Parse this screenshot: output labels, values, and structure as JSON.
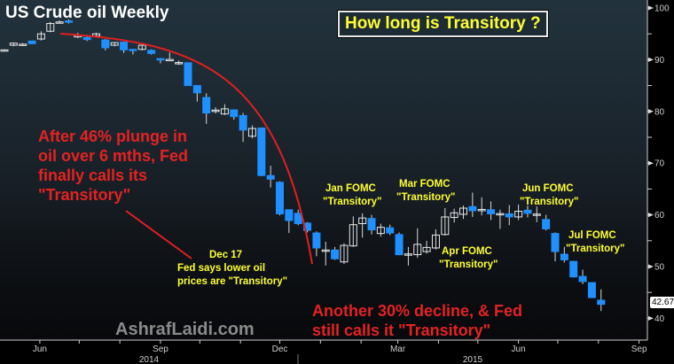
{
  "chart_data": {
    "type": "candlestick",
    "title": "US Crude oil Weekly",
    "headline": "How long is Transitory ?",
    "watermark": "AshrafLaidi.com",
    "last_price": "42.67",
    "ylim": [
      37,
      101
    ],
    "y_ticks": [
      40,
      50,
      60,
      70,
      80,
      90,
      100
    ],
    "x_tick_labels": [
      {
        "label": "Jun",
        "date": "2014-06-01"
      },
      {
        "label": "Sep",
        "date": "2014-09-01"
      },
      {
        "label": "Dec",
        "date": "2014-12-01"
      },
      {
        "label": "Mar",
        "date": "2015-03-01"
      },
      {
        "label": "Jun",
        "date": "2015-06-01"
      },
      {
        "label": "Sep",
        "date": "2015-09-01"
      }
    ],
    "year_labels": [
      "2014",
      "2015"
    ],
    "colors": {
      "down": "#1e90ff",
      "up": "#ffffff",
      "curve": "#e01f1f",
      "annotation": "#ffff33",
      "red_text": "#e52222"
    },
    "candles_fields": [
      "week",
      "open",
      "high",
      "low",
      "close"
    ],
    "candles": [
      [
        "2014-05-05",
        91.8,
        92.0,
        91.6,
        91.9
      ],
      [
        "2014-05-12",
        92.8,
        93.3,
        92.6,
        93.2
      ],
      [
        "2014-05-19",
        93.0,
        93.2,
        92.8,
        93.0
      ],
      [
        "2014-05-26",
        93.6,
        93.7,
        93.0,
        93.1
      ],
      [
        "2014-06-02",
        94.0,
        95.5,
        93.7,
        95.0
      ],
      [
        "2014-06-09",
        95.5,
        97.3,
        95.3,
        97.0
      ],
      [
        "2014-06-16",
        97.3,
        97.6,
        97.0,
        97.3
      ],
      [
        "2014-06-23",
        97.5,
        97.8,
        97.0,
        97.3
      ],
      [
        "2014-06-30",
        94.4,
        95.2,
        94.2,
        94.7
      ],
      [
        "2014-07-07",
        94.3,
        94.6,
        93.6,
        93.9
      ],
      [
        "2014-07-14",
        94.6,
        95.2,
        94.5,
        95.0
      ],
      [
        "2014-07-21",
        93.8,
        94.0,
        91.8,
        92.3
      ],
      [
        "2014-07-28",
        92.8,
        93.4,
        92.6,
        93.3
      ],
      [
        "2014-08-04",
        93.4,
        93.5,
        91.3,
        91.9
      ],
      [
        "2014-08-11",
        92.0,
        92.0,
        91.0,
        91.8
      ],
      [
        "2014-08-18",
        92.0,
        92.9,
        91.8,
        92.8
      ],
      [
        "2014-08-25",
        91.8,
        92.0,
        91.0,
        91.2
      ],
      [
        "2014-09-01",
        90.2,
        90.3,
        89.3,
        90.0
      ],
      [
        "2014-09-08",
        90.0,
        91.4,
        90.0,
        90.05
      ],
      [
        "2014-09-15",
        89.4,
        89.8,
        89.0,
        89.45
      ],
      [
        "2014-09-22",
        89.4,
        89.5,
        85.0,
        85.0
      ],
      [
        "2014-09-29",
        85.0,
        85.0,
        81.9,
        83.6
      ],
      [
        "2014-10-06",
        82.7,
        83.5,
        77.6,
        79.7
      ],
      [
        "2014-10-13",
        80.2,
        80.8,
        79.6,
        80.25
      ],
      [
        "2014-10-20",
        79.5,
        81.4,
        79.3,
        80.5
      ],
      [
        "2014-10-27",
        80.3,
        80.3,
        78.4,
        79.0
      ],
      [
        "2014-11-03",
        79.2,
        79.7,
        74.1,
        76.4
      ],
      [
        "2014-11-10",
        75.2,
        77.3,
        74.8,
        76.7
      ],
      [
        "2014-11-17",
        76.8,
        76.9,
        67.5,
        67.6
      ],
      [
        "2014-11-24",
        67.6,
        69.5,
        65.3,
        66.9
      ],
      [
        "2014-12-01",
        66.3,
        66.5,
        59.9,
        60.2
      ],
      [
        "2014-12-08",
        61.0,
        61.0,
        56.5,
        58.9
      ],
      [
        "2014-12-15",
        60.3,
        61.0,
        58.0,
        58.3
      ],
      [
        "2014-12-22",
        58.4,
        58.6,
        56.6,
        57.0
      ],
      [
        "2014-12-29",
        56.5,
        56.8,
        52.0,
        53.6
      ],
      [
        "2015-01-05",
        53.1,
        54.8,
        50.2,
        53.2
      ],
      [
        "2015-01-12",
        53.2,
        53.8,
        51.3,
        51.5
      ],
      [
        "2015-01-19",
        50.9,
        54.5,
        50.5,
        54.1
      ],
      [
        "2015-01-26",
        54.0,
        59.7,
        53.8,
        58.1
      ],
      [
        "2015-02-02",
        58.3,
        60.3,
        55.6,
        59.4
      ],
      [
        "2015-02-09",
        59.3,
        60.0,
        56.2,
        57.1
      ],
      [
        "2015-02-16",
        56.4,
        58.3,
        55.8,
        57.6
      ],
      [
        "2015-02-23",
        57.5,
        58.1,
        56.1,
        56.5
      ],
      [
        "2015-03-02",
        56.2,
        56.6,
        52.2,
        52.3
      ],
      [
        "2015-03-09",
        52.4,
        53.8,
        50.2,
        52.45
      ],
      [
        "2015-03-16",
        52.3,
        57.4,
        51.7,
        54.3
      ],
      [
        "2015-03-23",
        52.9,
        55.0,
        52.5,
        53.7
      ],
      [
        "2015-03-30",
        53.6,
        57.2,
        53.3,
        56.1
      ],
      [
        "2015-04-06",
        56.2,
        61.3,
        56.0,
        59.6
      ],
      [
        "2015-04-13",
        59.5,
        61.2,
        58.5,
        60.4
      ],
      [
        "2015-04-20",
        60.1,
        61.8,
        59.2,
        61.3
      ],
      [
        "2015-04-27",
        61.6,
        64.3,
        59.6,
        60.8
      ],
      [
        "2015-05-04",
        61.0,
        63.4,
        59.9,
        61.05
      ],
      [
        "2015-05-11",
        61.0,
        62.6,
        59.0,
        60.2
      ],
      [
        "2015-05-18",
        60.2,
        61.0,
        57.3,
        60.25
      ],
      [
        "2015-05-25",
        60.2,
        61.9,
        58.0,
        59.6
      ],
      [
        "2015-06-01",
        59.6,
        62.0,
        59.0,
        60.7
      ],
      [
        "2015-06-08",
        60.9,
        61.8,
        59.5,
        60.3
      ],
      [
        "2015-06-15",
        60.1,
        61.6,
        58.6,
        60.15
      ],
      [
        "2015-06-22",
        59.1,
        60.0,
        57.0,
        57.3
      ],
      [
        "2015-06-29",
        56.4,
        56.6,
        51.0,
        52.9
      ],
      [
        "2015-07-06",
        52.4,
        53.8,
        50.8,
        51.3
      ],
      [
        "2015-07-13",
        51.0,
        51.1,
        47.9,
        48.0
      ],
      [
        "2015-07-20",
        48.1,
        49.4,
        46.6,
        47.1
      ],
      [
        "2015-07-27",
        46.9,
        47.0,
        43.9,
        44.0
      ],
      [
        "2015-08-03",
        43.5,
        45.6,
        41.4,
        42.7
      ]
    ],
    "annotations": {
      "red_left": [
        "After 46% plunge in",
        "oil over 6 mths, Fed",
        "finally calls its",
        "\"Transitory\""
      ],
      "red_bottom": [
        "Another 30% decline, & Fed",
        "still calls it \"Transitory\""
      ],
      "dec17": [
        "Dec 17",
        "Fed says lower oil",
        "prices are \"Transitory\""
      ],
      "jan": [
        "Jan FOMC",
        "\"Transitory\""
      ],
      "mar": [
        "Mar FOMC",
        "\"Transitory\""
      ],
      "apr": [
        "Apr FOMC",
        "\"Transitory\""
      ],
      "jun": [
        "Jun FOMC",
        "\"Transitory\""
      ],
      "jul": [
        "Jul FOMC",
        "\"Transitory\""
      ]
    }
  }
}
